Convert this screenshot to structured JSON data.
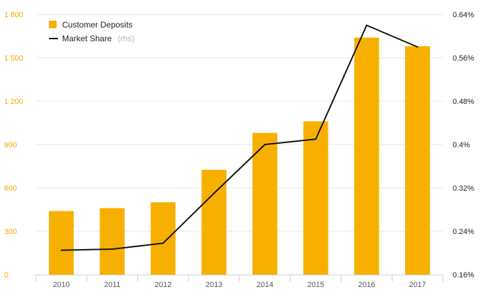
{
  "chart_data": {
    "type": "bar",
    "categories": [
      "2010",
      "2011",
      "2012",
      "2013",
      "2014",
      "2015",
      "2016",
      "2017"
    ],
    "series": [
      {
        "name": "Customer Deposits",
        "type": "bar",
        "axis": "left",
        "color": "#f7b000",
        "values": [
          440,
          460,
          500,
          725,
          980,
          1060,
          1640,
          1580
        ]
      },
      {
        "name": "Market Share",
        "name_suffix": "(rhs)",
        "type": "line",
        "axis": "right",
        "color": "#111111",
        "values": [
          0.205,
          0.207,
          0.218,
          0.31,
          0.4,
          0.41,
          0.62,
          0.58
        ]
      }
    ],
    "y_left": {
      "ticks": [
        0,
        300,
        600,
        900,
        1200,
        1500,
        1800
      ],
      "tick_labels": [
        "0",
        "300",
        "600",
        "900",
        "1 200",
        "1 500",
        "1 800"
      ],
      "ylim": [
        0,
        1800
      ]
    },
    "y_right": {
      "ticks": [
        0.16,
        0.24,
        0.32,
        0.4,
        0.48,
        0.56,
        0.64
      ],
      "tick_labels": [
        "0.16%",
        "0.24%",
        "0.32%",
        "0.4%",
        "0.48%",
        "0.56%",
        "0.64%"
      ],
      "ylim": [
        0.16,
        0.64
      ]
    },
    "grid": true,
    "legend_position": "top-left"
  }
}
